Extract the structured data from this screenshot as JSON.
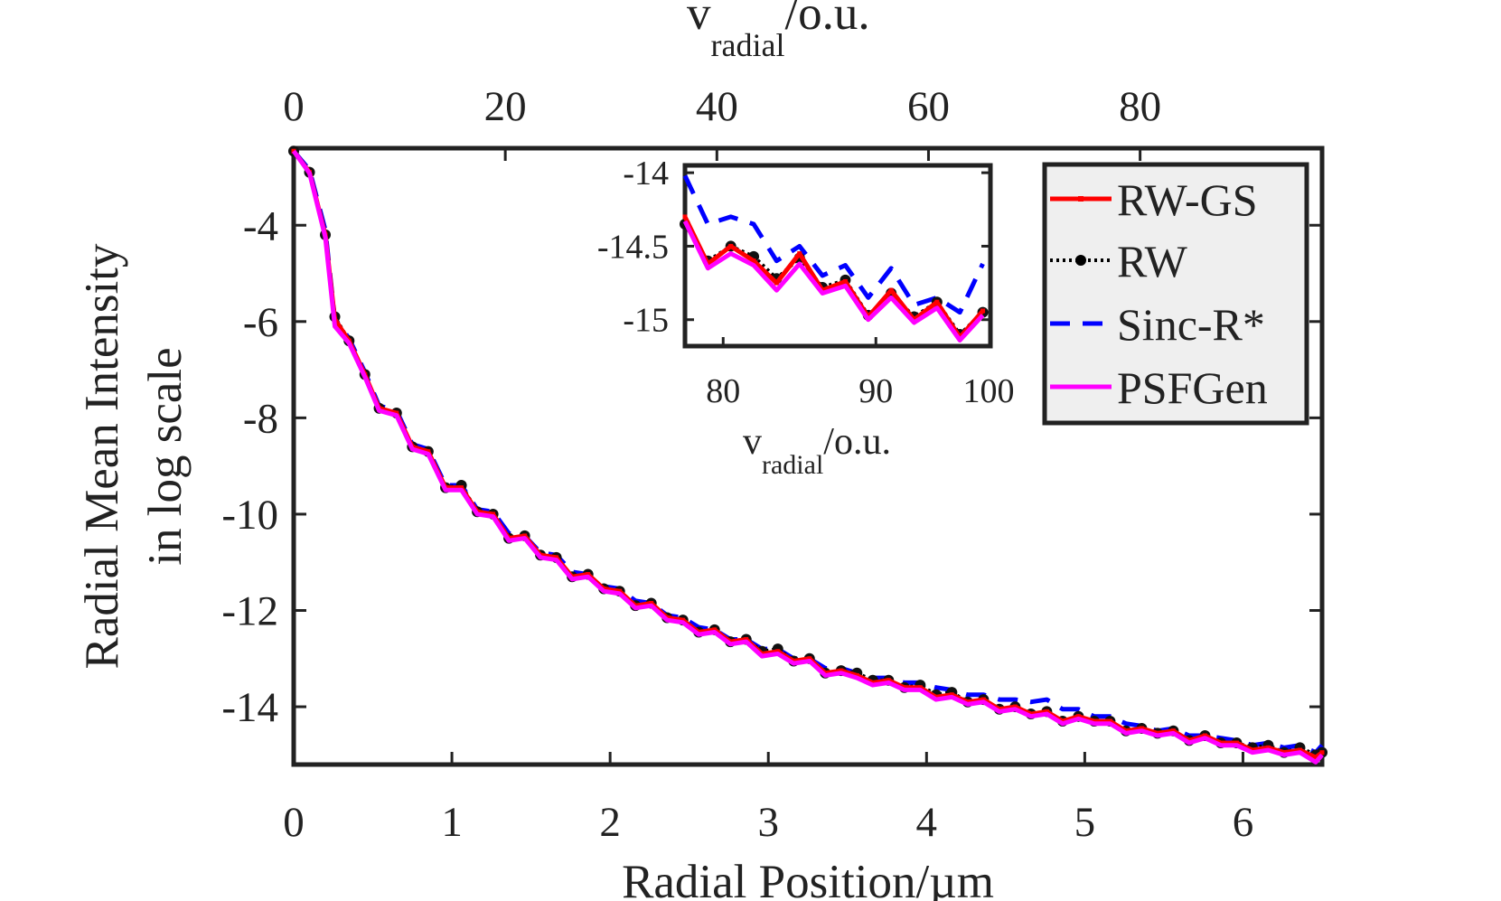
{
  "chart_data": {
    "type": "line",
    "ylabel_line1": "Radial Mean Intensity",
    "ylabel_line2": "in log scale",
    "xlabel": "Radial Position/µm",
    "top_axis": {
      "label_main": "v",
      "label_sub": "radial",
      "label_suffix": "/o.u.",
      "ticks": [
        "0",
        "20",
        "40",
        "60",
        "80"
      ],
      "tick_values": [
        0,
        20,
        40,
        60,
        80
      ],
      "range": [
        0,
        97.2
      ]
    },
    "x_range": [
      0,
      6.5
    ],
    "y_range": [
      -15.2,
      -2.4
    ],
    "x_ticks": [
      "0",
      "1",
      "2",
      "3",
      "4",
      "5",
      "6"
    ],
    "x_tick_values": [
      0,
      1,
      2,
      3,
      4,
      5,
      6
    ],
    "y_ticks": [
      "-4",
      "-6",
      "-8",
      "-10",
      "-12",
      "-14"
    ],
    "y_tick_values": [
      -4,
      -6,
      -8,
      -10,
      -12,
      -14
    ],
    "series": [
      {
        "name": "RW-GS",
        "color": "#ff0000",
        "style": "solid-square-markers",
        "points_x": [
          0.0,
          0.1,
          0.2,
          0.26,
          0.35,
          0.45,
          0.54,
          0.65,
          0.75,
          0.85,
          0.96,
          1.06,
          1.16,
          1.26,
          1.36,
          1.46,
          1.56,
          1.66,
          1.76,
          1.86,
          1.96,
          2.06,
          2.16,
          2.26,
          2.36,
          2.46,
          2.56,
          2.66,
          2.76,
          2.86,
          2.96,
          3.06,
          3.16,
          3.26,
          3.36,
          3.46,
          3.56,
          3.66,
          3.76,
          3.86,
          3.96,
          4.06,
          4.16,
          4.26,
          4.36,
          4.46,
          4.56,
          4.66,
          4.76,
          4.86,
          4.96,
          5.06,
          5.16,
          5.26,
          5.36,
          5.46,
          5.56,
          5.66,
          5.76,
          5.86,
          5.96,
          6.06,
          6.16,
          6.26,
          6.36,
          6.46,
          6.5
        ],
        "points_y": [
          -2.46,
          -2.9,
          -4.2,
          -5.95,
          -6.4,
          -7.1,
          -7.8,
          -7.9,
          -8.6,
          -8.7,
          -9.45,
          -9.45,
          -9.95,
          -10.0,
          -10.5,
          -10.45,
          -10.85,
          -10.9,
          -11.3,
          -11.25,
          -11.55,
          -11.6,
          -11.9,
          -11.85,
          -12.15,
          -12.2,
          -12.45,
          -12.4,
          -12.65,
          -12.6,
          -12.9,
          -12.85,
          -13.05,
          -13.0,
          -13.3,
          -13.25,
          -13.35,
          -13.5,
          -13.45,
          -13.6,
          -13.6,
          -13.8,
          -13.75,
          -13.9,
          -13.85,
          -14.05,
          -14.0,
          -14.15,
          -14.1,
          -14.3,
          -14.2,
          -14.3,
          -14.3,
          -14.5,
          -14.45,
          -14.55,
          -14.5,
          -14.7,
          -14.6,
          -14.75,
          -14.75,
          -14.9,
          -14.85,
          -14.95,
          -14.9,
          -15.05,
          -14.95
        ]
      },
      {
        "name": "RW",
        "color": "#000000",
        "style": "dotted-circle-markers",
        "points_x": [
          0.0,
          0.1,
          0.2,
          0.26,
          0.35,
          0.45,
          0.54,
          0.65,
          0.75,
          0.85,
          0.96,
          1.06,
          1.16,
          1.26,
          1.36,
          1.46,
          1.56,
          1.66,
          1.76,
          1.86,
          1.96,
          2.06,
          2.16,
          2.26,
          2.36,
          2.46,
          2.56,
          2.66,
          2.76,
          2.86,
          2.96,
          3.06,
          3.16,
          3.26,
          3.36,
          3.46,
          3.56,
          3.66,
          3.76,
          3.86,
          3.96,
          4.06,
          4.16,
          4.26,
          4.36,
          4.46,
          4.56,
          4.66,
          4.76,
          4.86,
          4.96,
          5.06,
          5.16,
          5.26,
          5.36,
          5.46,
          5.56,
          5.66,
          5.76,
          5.86,
          5.96,
          6.06,
          6.16,
          6.26,
          6.36,
          6.46,
          6.5
        ],
        "points_y": [
          -2.46,
          -2.9,
          -4.2,
          -5.9,
          -6.4,
          -7.1,
          -7.8,
          -7.9,
          -8.6,
          -8.7,
          -9.45,
          -9.4,
          -9.95,
          -10.0,
          -10.5,
          -10.45,
          -10.85,
          -10.9,
          -11.3,
          -11.25,
          -11.55,
          -11.6,
          -11.9,
          -11.85,
          -12.15,
          -12.2,
          -12.45,
          -12.4,
          -12.65,
          -12.6,
          -12.85,
          -12.8,
          -13.05,
          -13.0,
          -13.3,
          -13.25,
          -13.3,
          -13.45,
          -13.45,
          -13.6,
          -13.55,
          -13.75,
          -13.7,
          -13.9,
          -13.85,
          -14.05,
          -14.0,
          -14.15,
          -14.1,
          -14.3,
          -14.2,
          -14.3,
          -14.3,
          -14.5,
          -14.45,
          -14.55,
          -14.5,
          -14.7,
          -14.6,
          -14.75,
          -14.75,
          -14.85,
          -14.8,
          -14.95,
          -14.85,
          -15.0,
          -14.95
        ]
      },
      {
        "name": "Sinc-R*",
        "color": "#0000ff",
        "style": "dashed",
        "points_x": [
          0.0,
          0.1,
          0.2,
          0.26,
          0.35,
          0.45,
          0.54,
          0.65,
          0.75,
          0.85,
          0.96,
          1.06,
          1.16,
          1.26,
          1.36,
          1.46,
          1.56,
          1.66,
          1.76,
          1.86,
          1.96,
          2.06,
          2.16,
          2.26,
          2.36,
          2.46,
          2.56,
          2.66,
          2.76,
          2.86,
          2.96,
          3.06,
          3.16,
          3.26,
          3.36,
          3.46,
          3.56,
          3.66,
          3.76,
          3.86,
          3.96,
          4.06,
          4.16,
          4.26,
          4.36,
          4.46,
          4.56,
          4.66,
          4.76,
          4.86,
          4.96,
          5.06,
          5.16,
          5.26,
          5.36,
          5.46,
          5.56,
          5.66,
          5.76,
          5.86,
          5.96,
          6.06,
          6.16,
          6.26,
          6.36,
          6.46,
          6.5
        ],
        "points_y": [
          -2.46,
          -2.85,
          -4.1,
          -5.95,
          -6.35,
          -7.05,
          -7.75,
          -7.85,
          -8.55,
          -8.65,
          -9.4,
          -9.4,
          -9.9,
          -9.95,
          -10.4,
          -10.45,
          -10.8,
          -10.85,
          -11.2,
          -11.25,
          -11.5,
          -11.55,
          -11.8,
          -11.85,
          -12.1,
          -12.15,
          -12.35,
          -12.4,
          -12.6,
          -12.6,
          -12.8,
          -12.8,
          -13.0,
          -13.0,
          -13.2,
          -13.2,
          -13.3,
          -13.4,
          -13.4,
          -13.5,
          -13.5,
          -13.6,
          -13.65,
          -13.75,
          -13.75,
          -13.85,
          -13.85,
          -13.9,
          -13.85,
          -14.05,
          -14.05,
          -14.2,
          -14.2,
          -14.35,
          -14.4,
          -14.5,
          -14.45,
          -14.6,
          -14.6,
          -14.65,
          -14.7,
          -14.8,
          -14.75,
          -14.85,
          -14.8,
          -14.95,
          -14.8
        ]
      },
      {
        "name": "PSFGen",
        "color": "#ff00ff",
        "style": "solid",
        "points_x": [
          0.0,
          0.1,
          0.2,
          0.26,
          0.35,
          0.45,
          0.54,
          0.65,
          0.75,
          0.85,
          0.96,
          1.06,
          1.16,
          1.26,
          1.36,
          1.46,
          1.56,
          1.66,
          1.76,
          1.86,
          1.96,
          2.06,
          2.16,
          2.26,
          2.36,
          2.46,
          2.56,
          2.66,
          2.76,
          2.86,
          2.96,
          3.06,
          3.16,
          3.26,
          3.36,
          3.46,
          3.56,
          3.66,
          3.76,
          3.86,
          3.96,
          4.06,
          4.16,
          4.26,
          4.36,
          4.46,
          4.56,
          4.66,
          4.76,
          4.86,
          4.96,
          5.06,
          5.16,
          5.26,
          5.36,
          5.46,
          5.56,
          5.66,
          5.76,
          5.86,
          5.96,
          6.06,
          6.16,
          6.26,
          6.36,
          6.46,
          6.5
        ],
        "points_y": [
          -2.46,
          -2.92,
          -4.25,
          -6.1,
          -6.45,
          -7.15,
          -7.85,
          -7.95,
          -8.65,
          -8.75,
          -9.5,
          -9.5,
          -10.0,
          -10.05,
          -10.55,
          -10.5,
          -10.9,
          -10.95,
          -11.35,
          -11.3,
          -11.6,
          -11.65,
          -11.95,
          -11.9,
          -12.2,
          -12.25,
          -12.5,
          -12.45,
          -12.7,
          -12.65,
          -12.95,
          -12.9,
          -13.1,
          -13.05,
          -13.35,
          -13.3,
          -13.4,
          -13.55,
          -13.5,
          -13.65,
          -13.65,
          -13.85,
          -13.8,
          -13.95,
          -13.9,
          -14.1,
          -14.05,
          -14.2,
          -14.15,
          -14.35,
          -14.25,
          -14.35,
          -14.35,
          -14.55,
          -14.5,
          -14.6,
          -14.55,
          -14.75,
          -14.65,
          -14.8,
          -14.8,
          -14.95,
          -14.9,
          -15.0,
          -14.95,
          -15.15,
          -15.0
        ]
      }
    ],
    "inset": {
      "x_range": [
        77.5,
        97.5
      ],
      "y_range": [
        -15.18,
        -13.95
      ],
      "x_ticks": [
        "80",
        "90",
        "100"
      ],
      "x_tick_values": [
        80,
        90,
        100
      ],
      "y_ticks": [
        "-14",
        "-14.5",
        "-15"
      ],
      "y_tick_values": [
        -14,
        -14.5,
        -15
      ],
      "xlabel_main": "v",
      "xlabel_sub": "radial",
      "xlabel_suffix": "/o.u.",
      "series": [
        {
          "name": "RW-GS",
          "points_x": [
            77.5,
            79.0,
            80.5,
            82.0,
            83.5,
            85.0,
            86.5,
            88.0,
            89.5,
            91.0,
            92.5,
            94.0,
            95.5,
            97.0
          ],
          "points_y": [
            -14.3,
            -14.62,
            -14.5,
            -14.6,
            -14.75,
            -14.55,
            -14.8,
            -14.74,
            -14.98,
            -14.8,
            -15.0,
            -14.88,
            -15.12,
            -14.94
          ]
        },
        {
          "name": "RW",
          "points_x": [
            77.5,
            79.0,
            80.5,
            82.0,
            83.5,
            85.0,
            86.5,
            88.0,
            89.5,
            91.0,
            92.5,
            94.0,
            95.5,
            97.0
          ],
          "points_y": [
            -14.35,
            -14.6,
            -14.5,
            -14.57,
            -14.72,
            -14.58,
            -14.78,
            -14.73,
            -14.97,
            -14.82,
            -14.98,
            -14.88,
            -15.1,
            -14.95
          ]
        },
        {
          "name": "Sinc-R*",
          "points_x": [
            77.5,
            79.0,
            80.5,
            82.0,
            83.5,
            85.0,
            86.5,
            88.0,
            89.5,
            91.0,
            92.5,
            94.0,
            95.5,
            97.0
          ],
          "points_y": [
            -14.02,
            -14.35,
            -14.3,
            -14.35,
            -14.6,
            -14.5,
            -14.7,
            -14.63,
            -14.85,
            -14.65,
            -14.9,
            -14.85,
            -14.95,
            -14.62
          ]
        },
        {
          "name": "PSFGen",
          "points_x": [
            77.5,
            79.0,
            80.5,
            82.0,
            83.5,
            85.0,
            86.5,
            88.0,
            89.5,
            91.0,
            92.5,
            94.0,
            95.5,
            97.0
          ],
          "points_y": [
            -14.33,
            -14.65,
            -14.55,
            -14.63,
            -14.8,
            -14.62,
            -14.82,
            -14.77,
            -15.0,
            -14.85,
            -15.02,
            -14.92,
            -15.14,
            -14.97
          ]
        }
      ]
    },
    "legend": {
      "placement": "top-right",
      "entries": [
        "RW-GS",
        "RW",
        "Sinc-R*",
        "PSFGen"
      ]
    }
  }
}
